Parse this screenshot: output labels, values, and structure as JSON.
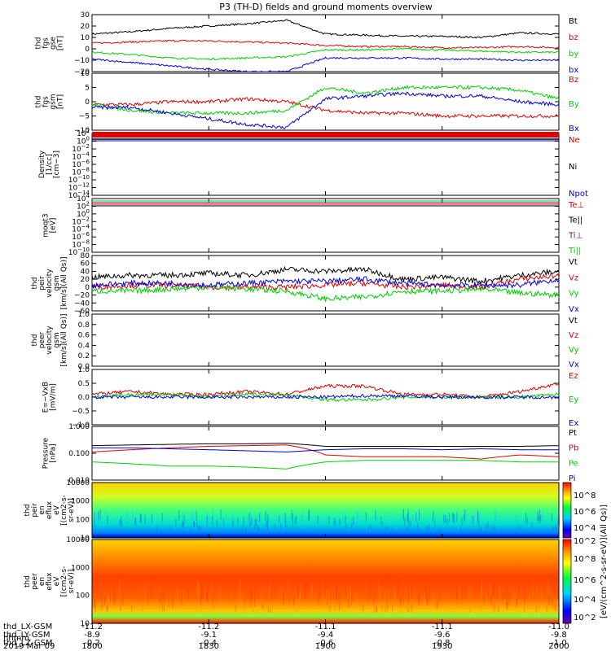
{
  "title": "P3 (TH-D) fields and ground moments overview",
  "time_ticks": [
    "1800",
    "1830",
    "1900",
    "1930",
    "2000"
  ],
  "orbit": {
    "labels": [
      "thd_LX-GSM",
      "thd_LY-GSM",
      "thd_LZ-GSM",
      "hhmm",
      "2019 Mar 09"
    ],
    "lx": [
      "-11.2",
      "-11.2",
      "-11.1",
      "-11.1",
      "-11.0"
    ],
    "ly": [
      "-8.9",
      "-9.1",
      "-9.4",
      "-9.6",
      "-9.8"
    ],
    "lz": [
      "-0.2",
      "-0.4",
      "-0.6",
      "-0.8",
      "-1.0"
    ]
  },
  "colorbar": {
    "label": "[eV/(cm2-s-sr-eV)]",
    "label2": "[eV/(cm^2-s-sr-eV)](All Qs)]",
    "ticks_upper": [
      "10^8",
      "10^6",
      "10^4",
      "10^2"
    ],
    "ticks_lower": [
      "10^8",
      "10^6",
      "10^4",
      "10^2"
    ]
  },
  "panels": [
    {
      "key": "fgs_gse",
      "ylabel": [
        "thd",
        "fgs",
        "gse",
        "[nT]"
      ],
      "yticks": [
        "30",
        "20",
        "10",
        "0",
        "−10",
        "−20"
      ],
      "legend": [
        {
          "t": "Bt",
          "c": "#000000"
        },
        {
          "t": "bz",
          "c": "#e00000"
        },
        {
          "t": "by",
          "c": "#00d000"
        },
        {
          "t": "bx",
          "c": "#0000e0"
        }
      ]
    },
    {
      "key": "fgs_gsm",
      "ylabel": [
        "thd",
        "fgs",
        "gsm",
        "[nT]"
      ],
      "yticks": [
        "10",
        "5",
        "0",
        "−5",
        "−10"
      ],
      "legend": [
        {
          "t": "Bz",
          "c": "#e00000"
        },
        {
          "t": "By",
          "c": "#00d000"
        },
        {
          "t": "Bx",
          "c": "#0000e0"
        }
      ]
    },
    {
      "key": "density",
      "ylabel": [
        "Density",
        "[1/cc]",
        "[cm−3]"
      ],
      "yticks": [
        "10^2",
        "10^0",
        "10^−2",
        "10^−4",
        "10^−6",
        "10^−8",
        "10^−10",
        "10^−12",
        "10^−14"
      ],
      "legend": [
        {
          "t": "Ne",
          "c": "#e00000"
        },
        {
          "t": "Ni",
          "c": "#000000"
        },
        {
          "t": "Npot",
          "c": "#0000e0"
        }
      ]
    },
    {
      "key": "temp",
      "ylabel": [
        "moqt3",
        "[eV]"
      ],
      "yticks": [
        "10^4",
        "10^2",
        "10^0",
        "10^−2",
        "10^−4",
        "10^−6",
        "10^−8",
        "10^−10"
      ],
      "legend": [
        {
          "t": "Te⊥",
          "c": "#e00000"
        },
        {
          "t": "Te||",
          "c": "#000000"
        },
        {
          "t": "Ti⊥",
          "c": "#8000a0"
        },
        {
          "t": "Ti||",
          "c": "#00d000"
        }
      ]
    },
    {
      "key": "peir_vel",
      "ylabel": [
        "thd",
        "peir",
        "velocity",
        "gsm",
        "[km/s](All Qs)]"
      ],
      "yticks": [
        "80",
        "60",
        "40",
        "20",
        "0",
        "−20",
        "−40",
        "−60"
      ],
      "legend": [
        {
          "t": "Vt",
          "c": "#000000"
        },
        {
          "t": "Vz",
          "c": "#e00000"
        },
        {
          "t": "Vy",
          "c": "#00d000"
        },
        {
          "t": "Vx",
          "c": "#0000e0"
        }
      ]
    },
    {
      "key": "peer_vel",
      "ylabel": [
        "thd",
        "peer",
        "velocity",
        "gsm",
        "[km/s](All Qs)]"
      ],
      "yticks": [
        "1.0",
        "0.8",
        "0.6",
        "0.4",
        "0.2",
        "0.0"
      ],
      "legend": [
        {
          "t": "Vt",
          "c": "#000000"
        },
        {
          "t": "Vz",
          "c": "#e00000"
        },
        {
          "t": "Vy",
          "c": "#00d000"
        },
        {
          "t": "Vx",
          "c": "#0000e0"
        }
      ]
    },
    {
      "key": "efield",
      "ylabel": [
        "E=−VxB",
        "[mV/m]"
      ],
      "yticks": [
        "1.0",
        "0.5",
        "0.0",
        "−0.5",
        "−1.0"
      ],
      "legend": [
        {
          "t": "Ez",
          "c": "#e00000"
        },
        {
          "t": "Ey",
          "c": "#00d000"
        },
        {
          "t": "Ex",
          "c": "#0000e0"
        }
      ]
    },
    {
      "key": "pressure",
      "ylabel": [
        "Pressure",
        "[nPa]"
      ],
      "yticks": [
        "1.000",
        "0.100",
        "0.010"
      ],
      "legend": [
        {
          "t": "Pt",
          "c": "#000000"
        },
        {
          "t": "Pb",
          "c": "#e00000"
        },
        {
          "t": "Pe",
          "c": "#00d000"
        },
        {
          "t": "Pi",
          "c": "#0000e0"
        }
      ]
    },
    {
      "key": "peir_spec",
      "ylabel": [
        "thd",
        "peir",
        "en",
        "eflux",
        "eV",
        "[(cm2-s-",
        "sr-eV)]"
      ],
      "yticks": [
        "10000",
        "1000",
        "100",
        "10"
      ],
      "legend": []
    },
    {
      "key": "peer_spec",
      "ylabel": [
        "thd",
        "peer",
        "en",
        "eflux",
        "eV",
        "[(cm2-s-",
        "sr-eV)]"
      ],
      "yticks": [
        "10000",
        "1000",
        "100",
        "10"
      ],
      "legend": []
    }
  ],
  "chart_data": [
    {
      "type": "line",
      "title": "P3 (TH-D) fields and ground moments overview",
      "ylabel": "thd fgs gse [nT]",
      "ylim": [
        -20,
        30
      ],
      "x": [
        "1800",
        "1810",
        "1820",
        "1830",
        "1840",
        "1850",
        "1900",
        "1910",
        "1920",
        "1930",
        "1940",
        "1950",
        "2000"
      ],
      "series": [
        {
          "name": "Bt",
          "values": [
            13,
            15,
            18,
            20,
            22,
            25,
            13,
            12,
            11,
            11,
            10,
            14,
            13
          ]
        },
        {
          "name": "bz",
          "values": [
            5,
            6,
            7,
            7,
            6,
            5,
            3,
            2,
            2,
            1,
            1,
            2,
            1
          ]
        },
        {
          "name": "by",
          "values": [
            -3,
            -5,
            -8,
            -9,
            -8,
            -7,
            -1,
            -1,
            0,
            -1,
            -2,
            -3,
            -3
          ]
        },
        {
          "name": "bx",
          "values": [
            -9,
            -12,
            -15,
            -18,
            -20,
            -20,
            -8,
            -8,
            -8,
            -9,
            -9,
            -10,
            -10
          ]
        }
      ]
    },
    {
      "type": "line",
      "ylabel": "thd fgs gsm [nT]",
      "ylim": [
        -10,
        10
      ],
      "x": [
        "1800",
        "1810",
        "1820",
        "1830",
        "1840",
        "1850",
        "1900",
        "1910",
        "1920",
        "1930",
        "1940",
        "1950",
        "2000"
      ],
      "series": [
        {
          "name": "Bz",
          "values": [
            -1,
            -1,
            0,
            0,
            1,
            0,
            -3,
            -4,
            -4,
            -5,
            -5,
            -5,
            -5
          ]
        },
        {
          "name": "By",
          "values": [
            -1,
            -3,
            -4,
            -4,
            -4,
            -3,
            5,
            3,
            5,
            5,
            5,
            4,
            1
          ]
        },
        {
          "name": "Bx",
          "values": [
            -2,
            -2,
            -4,
            -6,
            -8,
            -9,
            1,
            2,
            3,
            2,
            2,
            0,
            -1
          ]
        }
      ]
    },
    {
      "type": "line",
      "ylabel": "Density [cm-3]",
      "log": true,
      "ylim": [
        1e-14,
        100
      ],
      "x": [
        "1800",
        "1830",
        "1900",
        "1930",
        "2000"
      ],
      "series": [
        {
          "name": "Ne",
          "values": [
            1,
            1,
            1,
            1,
            1
          ]
        },
        {
          "name": "Ni",
          "values": [
            0.5,
            0.5,
            0.5,
            0.5,
            0.5
          ]
        },
        {
          "name": "Npot",
          "values": [
            0.3,
            0.3,
            0.3,
            0.3,
            0.3
          ]
        }
      ]
    },
    {
      "type": "line",
      "ylabel": "moqt3 [eV]",
      "log": true,
      "ylim": [
        1e-10,
        10000
      ],
      "x": [
        "1800",
        "1830",
        "1900",
        "1930",
        "2000"
      ],
      "series": [
        {
          "name": "Te⊥",
          "values": [
            800,
            700,
            600,
            700,
            800
          ]
        },
        {
          "name": "Te||",
          "values": [
            500,
            450,
            400,
            450,
            500
          ]
        },
        {
          "name": "Ti⊥",
          "values": [
            3000,
            3000,
            3000,
            3000,
            3000
          ]
        },
        {
          "name": "Ti||",
          "values": [
            2000,
            2000,
            2000,
            2000,
            2000
          ]
        }
      ]
    },
    {
      "type": "line",
      "ylabel": "thd peir velocity gsm [km/s](All Qs)]",
      "ylim": [
        -60,
        80
      ],
      "x": [
        "1800",
        "1810",
        "1820",
        "1830",
        "1840",
        "1850",
        "1900",
        "1910",
        "1920",
        "1930",
        "1940",
        "1950",
        "2000"
      ],
      "series": [
        {
          "name": "Vt",
          "values": [
            25,
            30,
            30,
            35,
            30,
            45,
            40,
            45,
            20,
            25,
            15,
            30,
            40
          ]
        },
        {
          "name": "Vz",
          "values": [
            0,
            5,
            5,
            0,
            0,
            0,
            5,
            10,
            0,
            5,
            0,
            20,
            30
          ]
        },
        {
          "name": "Vy",
          "values": [
            -10,
            -10,
            -5,
            0,
            -5,
            -10,
            -30,
            -25,
            -10,
            -10,
            -5,
            -15,
            -20
          ]
        },
        {
          "name": "Vx",
          "values": [
            5,
            10,
            10,
            5,
            10,
            15,
            15,
            20,
            10,
            5,
            5,
            5,
            20
          ]
        }
      ]
    },
    {
      "type": "line",
      "ylabel": "thd peer velocity gsm [km/s](All Qs)]",
      "ylim": [
        0,
        1
      ],
      "x": [
        "1800",
        "2000"
      ],
      "series": []
    },
    {
      "type": "line",
      "ylabel": "E=-VxB [mV/m]",
      "ylim": [
        -1,
        1
      ],
      "x": [
        "1800",
        "1810",
        "1820",
        "1830",
        "1840",
        "1850",
        "1900",
        "1910",
        "1920",
        "1930",
        "1940",
        "1950",
        "2000"
      ],
      "series": [
        {
          "name": "Ez",
          "values": [
            0.1,
            0.2,
            0.1,
            0.1,
            0.2,
            0.1,
            0.4,
            0.4,
            0.1,
            0.1,
            0.0,
            0.2,
            0.5
          ]
        },
        {
          "name": "Ey",
          "values": [
            0.0,
            0.1,
            0.1,
            0.0,
            0.1,
            0.1,
            -0.1,
            -0.1,
            0.0,
            0.0,
            0.0,
            0.0,
            0.1
          ]
        },
        {
          "name": "Ex",
          "values": [
            0.0,
            0.0,
            0.0,
            0.0,
            0.0,
            0.0,
            0.0,
            0.05,
            0.05,
            0.0,
            0.0,
            0.0,
            0.0
          ]
        }
      ]
    },
    {
      "type": "line",
      "ylabel": "Pressure [nPa]",
      "log": true,
      "ylim": [
        0.005,
        1
      ],
      "x": [
        "1800",
        "1810",
        "1820",
        "1830",
        "1840",
        "1850",
        "1900",
        "1910",
        "1920",
        "1930",
        "1940",
        "1950",
        "2000"
      ],
      "series": [
        {
          "name": "Pt",
          "values": [
            0.15,
            0.16,
            0.17,
            0.18,
            0.18,
            0.19,
            0.14,
            0.14,
            0.14,
            0.14,
            0.14,
            0.14,
            0.15
          ]
        },
        {
          "name": "Pb",
          "values": [
            0.08,
            0.1,
            0.12,
            0.14,
            0.15,
            0.16,
            0.06,
            0.05,
            0.05,
            0.05,
            0.04,
            0.06,
            0.05
          ]
        },
        {
          "name": "Pe",
          "values": [
            0.03,
            0.025,
            0.02,
            0.02,
            0.018,
            0.015,
            0.03,
            0.035,
            0.035,
            0.035,
            0.035,
            0.03,
            0.03
          ]
        },
        {
          "name": "Pi",
          "values": [
            0.12,
            0.12,
            0.11,
            0.1,
            0.09,
            0.08,
            0.1,
            0.11,
            0.11,
            0.1,
            0.11,
            0.1,
            0.1
          ]
        }
      ]
    },
    {
      "type": "heatmap",
      "ylabel": "thd peir en eflux",
      "log": true,
      "ylim": [
        5,
        20000
      ]
    },
    {
      "type": "heatmap",
      "ylabel": "thd peer en eflux",
      "log": true,
      "ylim": [
        5,
        20000
      ]
    }
  ]
}
